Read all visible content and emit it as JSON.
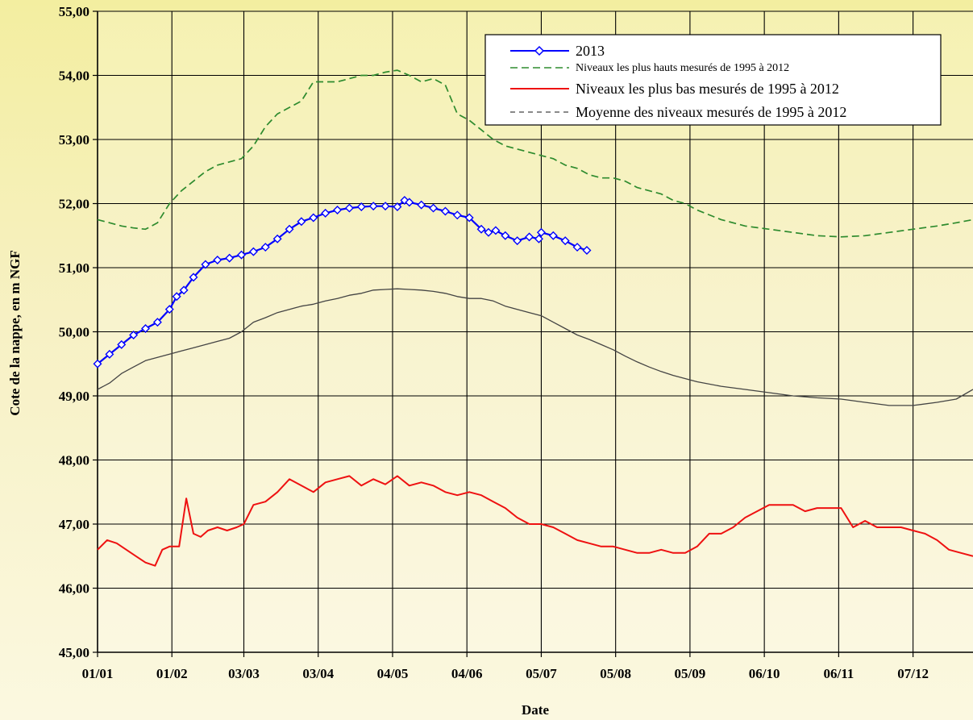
{
  "chart_data": {
    "type": "line",
    "xlabel": "Date",
    "ylabel": "Cote de la nappe, en m NGF",
    "ylim": [
      45,
      55
    ],
    "xlim": [
      0,
      365
    ],
    "yticks": [
      "45,00",
      "46,00",
      "47,00",
      "48,00",
      "49,00",
      "50,00",
      "51,00",
      "52,00",
      "53,00",
      "54,00",
      "55,00"
    ],
    "xticks": [
      "01/01",
      "01/02",
      "03/03",
      "03/04",
      "04/05",
      "04/06",
      "05/07",
      "05/08",
      "05/09",
      "06/10",
      "06/11",
      "07/12"
    ],
    "xtick_days": [
      0,
      31,
      61,
      92,
      123,
      154,
      185,
      216,
      247,
      278,
      309,
      340
    ],
    "grid": true,
    "legend_position": "top-right",
    "series": [
      {
        "name": "2013",
        "color": "#0000ff",
        "style": "line-marker",
        "x": [
          0,
          5,
          10,
          15,
          20,
          25,
          30,
          33,
          36,
          40,
          45,
          50,
          55,
          60,
          65,
          70,
          75,
          80,
          85,
          90,
          95,
          100,
          105,
          110,
          115,
          120,
          125,
          128,
          130,
          135,
          140,
          145,
          150,
          155,
          160,
          163,
          166,
          170,
          175,
          180,
          184,
          185,
          190,
          195,
          200,
          204
        ],
        "y": [
          49.5,
          49.65,
          49.8,
          49.95,
          50.05,
          50.15,
          50.35,
          50.55,
          50.65,
          50.85,
          51.05,
          51.12,
          51.15,
          51.2,
          51.25,
          51.32,
          51.45,
          51.6,
          51.72,
          51.78,
          51.85,
          51.9,
          51.93,
          51.95,
          51.96,
          51.96,
          51.95,
          52.05,
          52.02,
          51.98,
          51.93,
          51.88,
          51.82,
          51.78,
          51.6,
          51.55,
          51.58,
          51.5,
          51.42,
          51.48,
          51.45,
          51.55,
          51.5,
          51.42,
          51.32,
          51.27
        ]
      },
      {
        "name": "Niveaux les plus hauts mesurés de 1995 à 2012",
        "color": "#2e8b2e",
        "style": "dashed",
        "x": [
          0,
          5,
          10,
          15,
          20,
          25,
          30,
          35,
          40,
          45,
          50,
          55,
          60,
          65,
          70,
          75,
          80,
          85,
          90,
          95,
          100,
          105,
          110,
          115,
          120,
          125,
          130,
          135,
          140,
          145,
          150,
          155,
          160,
          165,
          170,
          175,
          180,
          185,
          190,
          195,
          200,
          205,
          210,
          215,
          220,
          225,
          230,
          235,
          240,
          245,
          250,
          260,
          270,
          280,
          290,
          300,
          310,
          320,
          330,
          340,
          350,
          358,
          365
        ],
        "y": [
          51.75,
          51.7,
          51.65,
          51.62,
          51.6,
          51.7,
          52.0,
          52.2,
          52.35,
          52.5,
          52.6,
          52.65,
          52.7,
          52.9,
          53.2,
          53.4,
          53.5,
          53.6,
          53.9,
          53.9,
          53.9,
          53.95,
          54.0,
          54.0,
          54.05,
          54.08,
          54.0,
          53.9,
          53.95,
          53.85,
          53.4,
          53.3,
          53.15,
          53.0,
          52.9,
          52.85,
          52.8,
          52.75,
          52.7,
          52.6,
          52.55,
          52.45,
          52.4,
          52.4,
          52.35,
          52.25,
          52.2,
          52.15,
          52.05,
          52.0,
          51.9,
          51.75,
          51.65,
          51.6,
          51.55,
          51.5,
          51.48,
          51.5,
          51.55,
          51.6,
          51.65,
          51.7,
          51.75
        ]
      },
      {
        "name": "Niveaux les plus bas mesurés de 1995 à 2012",
        "color": "#ee1111",
        "style": "solid",
        "x": [
          0,
          4,
          8,
          12,
          16,
          20,
          24,
          27,
          30,
          34,
          37,
          40,
          43,
          46,
          50,
          54,
          58,
          61,
          65,
          70,
          75,
          80,
          85,
          90,
          95,
          100,
          105,
          110,
          115,
          120,
          125,
          130,
          135,
          140,
          145,
          150,
          155,
          160,
          165,
          170,
          175,
          180,
          185,
          190,
          195,
          200,
          205,
          210,
          215,
          220,
          225,
          230,
          235,
          240,
          245,
          250,
          255,
          260,
          265,
          270,
          275,
          280,
          285,
          290,
          295,
          300,
          305,
          310,
          315,
          320,
          325,
          330,
          335,
          340,
          345,
          350,
          355,
          360,
          365
        ],
        "y": [
          46.6,
          46.75,
          46.7,
          46.6,
          46.5,
          46.4,
          46.35,
          46.6,
          46.65,
          46.65,
          47.4,
          46.85,
          46.8,
          46.9,
          46.95,
          46.9,
          46.95,
          47.0,
          47.3,
          47.35,
          47.5,
          47.7,
          47.6,
          47.5,
          47.65,
          47.7,
          47.75,
          47.6,
          47.7,
          47.62,
          47.75,
          47.6,
          47.65,
          47.6,
          47.5,
          47.45,
          47.5,
          47.45,
          47.35,
          47.25,
          47.1,
          47.0,
          47.0,
          46.95,
          46.85,
          46.75,
          46.7,
          46.65,
          46.65,
          46.6,
          46.55,
          46.55,
          46.6,
          46.55,
          46.55,
          46.65,
          46.85,
          46.85,
          46.95,
          47.1,
          47.2,
          47.3,
          47.3,
          47.3,
          47.2,
          47.25,
          47.25,
          47.25,
          46.95,
          47.05,
          46.95,
          46.95,
          46.95,
          46.9,
          46.85,
          46.75,
          46.6,
          46.55,
          46.5
        ]
      },
      {
        "name": "Moyenne des niveaux mesurés de 1995 à 2012",
        "color": "#444444",
        "style": "solid",
        "x": [
          0,
          5,
          10,
          15,
          20,
          25,
          30,
          35,
          40,
          45,
          50,
          55,
          60,
          65,
          70,
          75,
          80,
          85,
          90,
          95,
          100,
          105,
          110,
          115,
          120,
          125,
          130,
          135,
          140,
          145,
          150,
          155,
          160,
          165,
          170,
          175,
          180,
          185,
          190,
          195,
          200,
          205,
          210,
          215,
          220,
          225,
          230,
          235,
          240,
          250,
          260,
          270,
          280,
          290,
          300,
          310,
          320,
          330,
          340,
          350,
          358,
          365
        ],
        "y": [
          49.1,
          49.2,
          49.35,
          49.45,
          49.55,
          49.6,
          49.65,
          49.7,
          49.75,
          49.8,
          49.85,
          49.9,
          50.0,
          50.15,
          50.22,
          50.3,
          50.35,
          50.4,
          50.43,
          50.48,
          50.52,
          50.57,
          50.6,
          50.65,
          50.66,
          50.67,
          50.66,
          50.65,
          50.63,
          50.6,
          50.55,
          50.52,
          50.52,
          50.48,
          50.4,
          50.35,
          50.3,
          50.25,
          50.15,
          50.05,
          49.95,
          49.88,
          49.8,
          49.72,
          49.62,
          49.53,
          49.45,
          49.38,
          49.32,
          49.22,
          49.15,
          49.1,
          49.05,
          49.0,
          48.97,
          48.95,
          48.9,
          48.85,
          48.85,
          48.9,
          48.95,
          49.1
        ]
      }
    ]
  }
}
